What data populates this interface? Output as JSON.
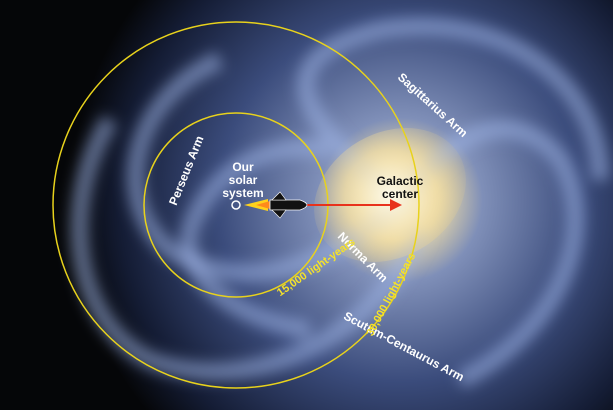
{
  "labels": {
    "solar_system": [
      "Our",
      "solar",
      "system"
    ],
    "galactic_center": [
      "Galactic",
      "center"
    ],
    "perseus_arm": "Perseus Arm",
    "sagittarius_arm": "Sagittarius Arm",
    "norma_arm": "Norma Arm",
    "scutum_centaurus_arm": "Scutum-Centaurus Arm",
    "inner_distance": "15,000 light-years",
    "outer_distance": "30,000 light-years"
  }
}
